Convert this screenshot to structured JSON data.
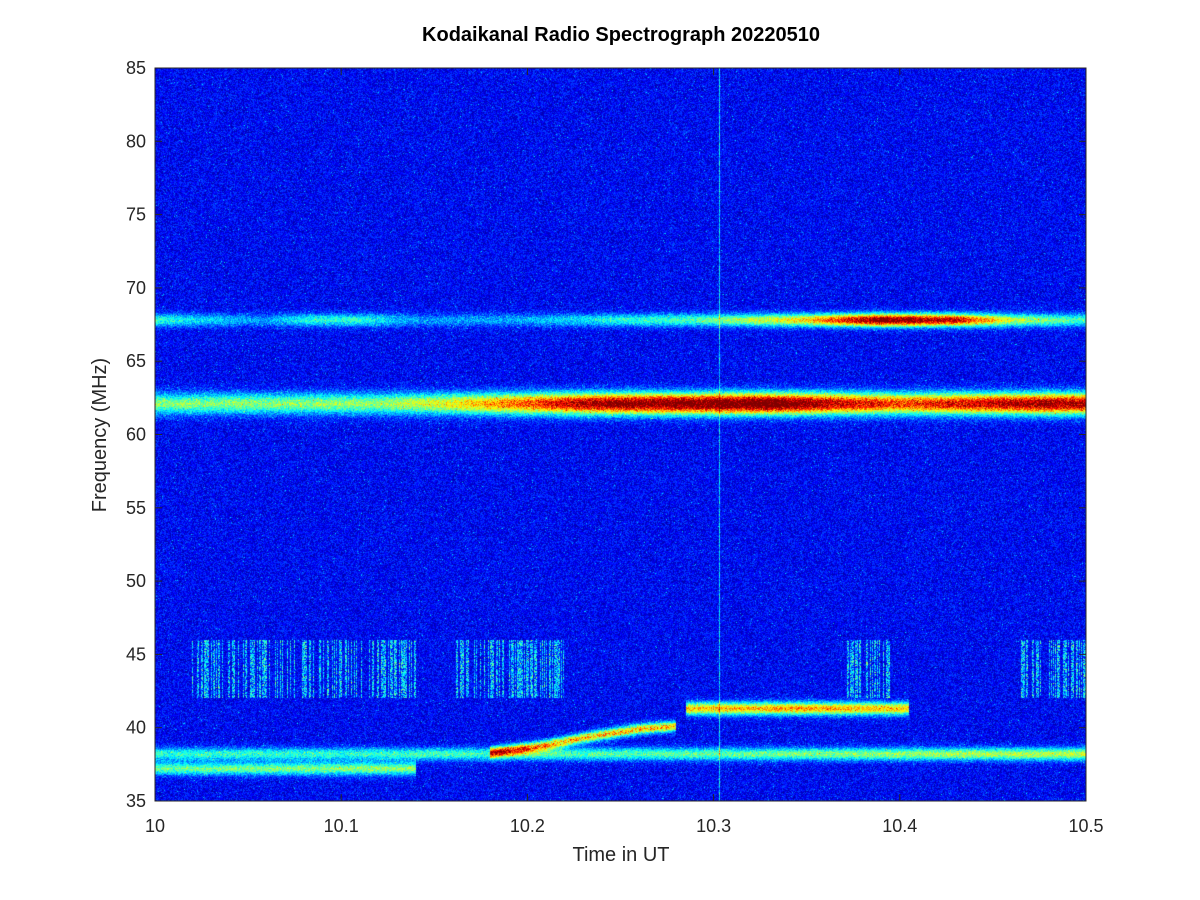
{
  "chart_data": {
    "type": "heatmap",
    "title": "Kodaikanal Radio Spectrograph  20220510",
    "xlabel": "Time in UT",
    "ylabel": "Frequency (MHz)",
    "xlim": [
      10,
      10.5
    ],
    "ylim": [
      35,
      85
    ],
    "x_ticks": [
      "10",
      "10.1",
      "10.2",
      "10.3",
      "10.4",
      "10.5"
    ],
    "y_ticks": [
      "35",
      "40",
      "45",
      "50",
      "55",
      "60",
      "65",
      "70",
      "75",
      "80",
      "85"
    ],
    "grid": false,
    "colormap": "jet",
    "background_level": 0.12,
    "features": [
      {
        "name": "band-62",
        "freq_mhz": 62.1,
        "time": [
          10.0,
          10.5
        ],
        "intensity": [
          [
            10.0,
            0.38
          ],
          [
            10.12,
            0.4
          ],
          [
            10.16,
            0.5
          ],
          [
            10.2,
            0.7
          ],
          [
            10.24,
            0.9
          ],
          [
            10.3,
            0.95
          ],
          [
            10.33,
            1.0
          ],
          [
            10.36,
            0.85
          ],
          [
            10.4,
            0.7
          ],
          [
            10.44,
            0.8
          ],
          [
            10.48,
            0.88
          ],
          [
            10.5,
            0.85
          ]
        ]
      },
      {
        "name": "band-67.8",
        "freq_mhz": 67.8,
        "time": [
          10.0,
          10.5
        ],
        "intensity": [
          [
            10.0,
            0.3
          ],
          [
            10.03,
            0.22
          ],
          [
            10.06,
            0.15
          ],
          [
            10.08,
            0.28
          ],
          [
            10.11,
            0.3
          ],
          [
            10.14,
            0.15
          ],
          [
            10.2,
            0.18
          ],
          [
            10.25,
            0.28
          ],
          [
            10.3,
            0.35
          ],
          [
            10.35,
            0.55
          ],
          [
            10.39,
            0.95
          ],
          [
            10.43,
            0.8
          ],
          [
            10.46,
            0.45
          ],
          [
            10.5,
            0.3
          ]
        ]
      },
      {
        "name": "band-41.3",
        "freq_mhz": 41.3,
        "time": [
          10.285,
          10.405
        ],
        "intensity": [
          [
            10.285,
            0.55
          ],
          [
            10.35,
            0.6
          ],
          [
            10.405,
            0.55
          ]
        ]
      },
      {
        "name": "band-38.2",
        "freq_mhz": 38.2,
        "time": [
          10.0,
          10.5
        ],
        "intensity": [
          [
            10.0,
            0.3
          ],
          [
            10.1,
            0.3
          ],
          [
            10.3,
            0.35
          ],
          [
            10.4,
            0.4
          ],
          [
            10.5,
            0.45
          ]
        ]
      },
      {
        "name": "band-37.2",
        "freq_mhz": 37.2,
        "time": [
          10.0,
          10.14
        ],
        "intensity": [
          [
            10.0,
            0.35
          ],
          [
            10.14,
            0.4
          ]
        ]
      },
      {
        "name": "drift-39",
        "points": [
          [
            10.18,
            38.3
          ],
          [
            10.21,
            38.8
          ],
          [
            10.23,
            39.3
          ],
          [
            10.26,
            39.9
          ],
          [
            10.28,
            40.1
          ]
        ],
        "intensity": 0.6
      },
      {
        "name": "burst-44",
        "freq_range": [
          42.0,
          46.0
        ],
        "time_ranges": [
          [
            10.02,
            10.14
          ],
          [
            10.16,
            10.22
          ],
          [
            10.37,
            10.395
          ],
          [
            10.465,
            10.5
          ]
        ],
        "intensity": 0.35
      },
      {
        "name": "line-10.303",
        "time": 10.303,
        "freq_range": [
          35,
          85
        ],
        "intensity": 0.3
      }
    ]
  }
}
